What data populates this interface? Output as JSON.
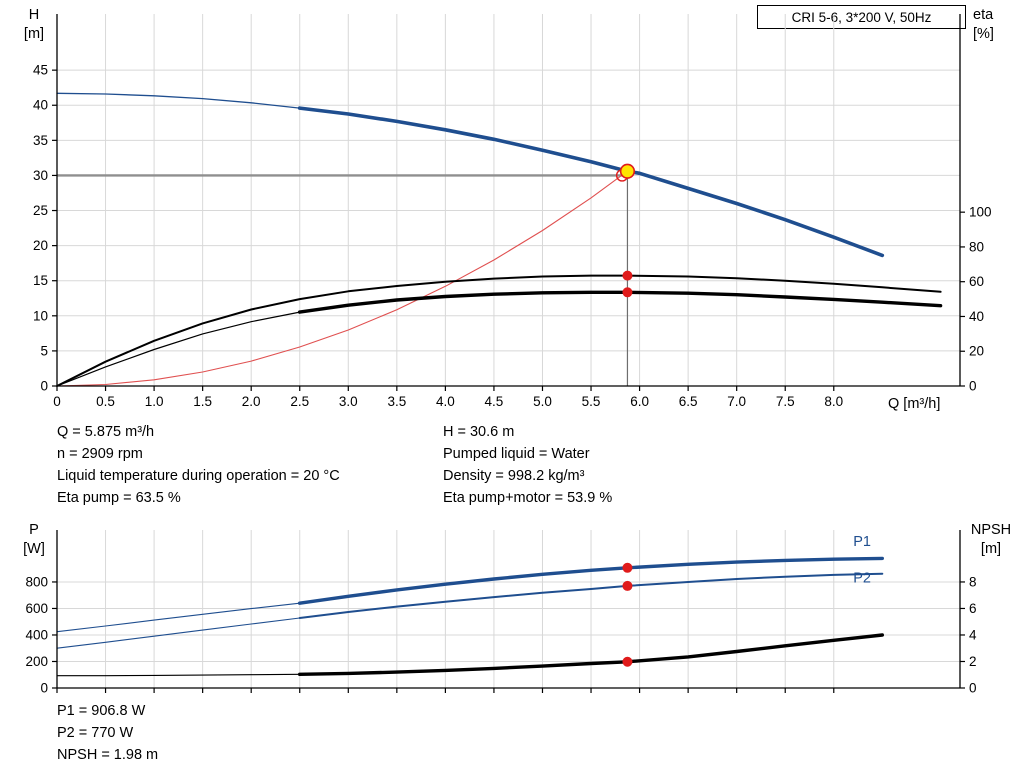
{
  "header": {
    "pump_model": "CRI 5-6, 3*200 V, 50Hz"
  },
  "labels": {
    "h_axis_symbol": "H",
    "h_axis_unit": "[m]",
    "eta_axis_symbol": "eta",
    "eta_axis_unit": "[%]",
    "q_axis": "Q [m³/h]",
    "p_axis_symbol": "P",
    "p_axis_unit": "[W]",
    "npsh_axis_symbol": "NPSH",
    "npsh_axis_unit": "[m]"
  },
  "info_top": {
    "left": [
      "Q = 5.875 m³/h",
      "n = 2909 rpm",
      "Liquid temperature during operation = 20 °C",
      "Eta pump = 63.5 %"
    ],
    "right": [
      "H = 30.6 m",
      "Pumped liquid = Water",
      "Density = 998.2 kg/m³",
      "Eta pump+motor = 53.9 %"
    ]
  },
  "info_bottom": [
    "P1 = 906.8 W",
    "P2 = 770 W",
    "NPSH = 1.98 m"
  ],
  "colors": {
    "curve_blue": "#1f4e8f",
    "curve_black": "#000000",
    "curve_red": "#e05050",
    "marker_red": "#e01b1b",
    "marker_yellow": "#ffe400",
    "crosshair_gray": "#8f8f8f",
    "grid_gray": "#d8d8d8"
  },
  "chart_data": [
    {
      "type": "line",
      "name": "qh-eta-chart",
      "grid": true,
      "x_axis": {
        "label": "Q [m³/h]",
        "range": [
          0,
          9.3
        ],
        "ticks": [
          [
            0,
            "0"
          ],
          [
            0.5,
            "0.5"
          ],
          [
            1,
            "1.0"
          ],
          [
            1.5,
            "1.5"
          ],
          [
            2,
            "2.0"
          ],
          [
            2.5,
            "2.5"
          ],
          [
            3,
            "3.0"
          ],
          [
            3.5,
            "3.5"
          ],
          [
            4,
            "4.0"
          ],
          [
            4.5,
            "4.5"
          ],
          [
            5,
            "5.0"
          ],
          [
            5.5,
            "5.5"
          ],
          [
            6,
            "6.0"
          ],
          [
            6.5,
            "6.5"
          ],
          [
            7,
            "7.0"
          ],
          [
            7.5,
            "7.5"
          ],
          [
            8,
            "8.0"
          ]
        ]
      },
      "y_left": {
        "label": "H [m]",
        "range": [
          0,
          53
        ],
        "ticks": [
          [
            0,
            "0"
          ],
          [
            5,
            "5"
          ],
          [
            10,
            "10"
          ],
          [
            15,
            "15"
          ],
          [
            20,
            "20"
          ],
          [
            25,
            "25"
          ],
          [
            30,
            "30"
          ],
          [
            35,
            "35"
          ],
          [
            40,
            "40"
          ],
          [
            45,
            "45"
          ]
        ]
      },
      "y_right": {
        "label": "eta [%]",
        "range": [
          0,
          214
        ],
        "ticks": [
          [
            0,
            "0"
          ],
          [
            20,
            "20"
          ],
          [
            40,
            "40"
          ],
          [
            60,
            "60"
          ],
          [
            80,
            "80"
          ],
          [
            100,
            "100"
          ]
        ]
      },
      "reference_lines": [
        {
          "name": "head-reference-line",
          "axis": "left",
          "from": [
            0,
            30
          ],
          "to": [
            5.875,
            30
          ],
          "color": "#8f8f8f",
          "width": 2.4
        },
        {
          "name": "flow-reference-line",
          "axis": "left",
          "from": [
            5.875,
            0
          ],
          "to": [
            5.875,
            30.6
          ],
          "color": "#6e6e6e",
          "width": 1.2
        }
      ],
      "series": [
        {
          "name": "qh-curve-extension",
          "axis": "left",
          "color": "#1f4e8f",
          "width": 1.3,
          "points": [
            [
              0,
              41.7
            ],
            [
              0.5,
              41.6
            ],
            [
              1,
              41.35
            ],
            [
              1.5,
              40.95
            ],
            [
              2,
              40.35
            ],
            [
              2.5,
              39.6
            ]
          ]
        },
        {
          "name": "qh-curve",
          "axis": "left",
          "color": "#1f4e8f",
          "width": 3.6,
          "points": [
            [
              2.5,
              39.6
            ],
            [
              3,
              38.75
            ],
            [
              3.5,
              37.7
            ],
            [
              4,
              36.5
            ],
            [
              4.5,
              35.15
            ],
            [
              5,
              33.6
            ],
            [
              5.5,
              31.95
            ],
            [
              5.875,
              30.6
            ],
            [
              6,
              30.3
            ],
            [
              6.5,
              28.15
            ],
            [
              7,
              26.0
            ],
            [
              7.5,
              23.7
            ],
            [
              8,
              21.2
            ],
            [
              8.5,
              18.6
            ]
          ]
        },
        {
          "name": "system-parabola",
          "axis": "left",
          "color": "#e05050",
          "width": 1.1,
          "points": [
            [
              0,
              0
            ],
            [
              0.5,
              0.22
            ],
            [
              1,
              0.89
            ],
            [
              1.5,
              2.0
            ],
            [
              2,
              3.55
            ],
            [
              2.5,
              5.55
            ],
            [
              3,
              7.98
            ],
            [
              3.5,
              10.85
            ],
            [
              4,
              14.2
            ],
            [
              4.5,
              17.95
            ],
            [
              5,
              22.15
            ],
            [
              5.5,
              26.8
            ],
            [
              5.875,
              30.6
            ]
          ]
        },
        {
          "name": "eta-pump-curve",
          "axis": "right",
          "color": "#000000",
          "width": 2,
          "points": [
            [
              0,
              0
            ],
            [
              0.5,
              14
            ],
            [
              1,
              26
            ],
            [
              1.5,
              36
            ],
            [
              2,
              44
            ],
            [
              2.5,
              50
            ],
            [
              3,
              54.5
            ],
            [
              3.5,
              57.5
            ],
            [
              4,
              60
            ],
            [
              4.5,
              61.8
            ],
            [
              5,
              63
            ],
            [
              5.5,
              63.5
            ],
            [
              5.875,
              63.5
            ],
            [
              6.5,
              63
            ],
            [
              7,
              62
            ],
            [
              7.5,
              60.5
            ],
            [
              8,
              58.8
            ],
            [
              8.5,
              56.8
            ],
            [
              9.1,
              54.2
            ]
          ]
        },
        {
          "name": "eta-pump-motor-extension",
          "axis": "right",
          "color": "#000000",
          "width": 1.2,
          "points": [
            [
              0,
              0
            ],
            [
              0.5,
              11
            ],
            [
              1,
              21
            ],
            [
              1.5,
              30
            ],
            [
              2,
              37
            ],
            [
              2.5,
              42.5
            ]
          ]
        },
        {
          "name": "eta-pump-motor-curve",
          "axis": "right",
          "color": "#000000",
          "width": 3.4,
          "points": [
            [
              2.5,
              42.5
            ],
            [
              3,
              46.5
            ],
            [
              3.5,
              49.5
            ],
            [
              4,
              51.5
            ],
            [
              4.5,
              52.8
            ],
            [
              5,
              53.6
            ],
            [
              5.5,
              53.9
            ],
            [
              5.875,
              53.9
            ],
            [
              6.5,
              53.4
            ],
            [
              7,
              52.5
            ],
            [
              7.5,
              51.2
            ],
            [
              8,
              49.8
            ],
            [
              8.5,
              48.2
            ],
            [
              9.1,
              46.2
            ]
          ]
        }
      ],
      "markers": [
        {
          "name": "requested-duty-point",
          "axis": "left",
          "x": 5.82,
          "y": 30.0,
          "r": 5.5,
          "stroke": "#e01b1b",
          "stroke_width": 1.4
        },
        {
          "name": "actual-duty-point",
          "axis": "left",
          "x": 5.875,
          "y": 30.6,
          "r": 6.8,
          "fill": "#ffe400",
          "stroke": "#e01b1b",
          "stroke_width": 1.6
        },
        {
          "name": "eta-pump-duty-dot",
          "axis": "right",
          "x": 5.875,
          "y": 63.5,
          "r": 5,
          "fill": "#e01b1b"
        },
        {
          "name": "eta-pump-motor-duty-dot",
          "axis": "right",
          "x": 5.875,
          "y": 53.9,
          "r": 5,
          "fill": "#e01b1b"
        }
      ],
      "annotations": []
    },
    {
      "type": "line",
      "name": "power-npsh-chart",
      "grid": true,
      "x_axis": {
        "label": "",
        "range": [
          0,
          9.3
        ],
        "ticks": [
          0,
          0.5,
          1,
          1.5,
          2,
          2.5,
          3,
          3.5,
          4,
          4.5,
          5,
          5.5,
          6,
          6.5,
          7,
          7.5,
          8
        ]
      },
      "y_left": {
        "label": "P [W]",
        "range": [
          0,
          1192
        ],
        "ticks": [
          [
            0,
            "0"
          ],
          [
            200,
            "200"
          ],
          [
            400,
            "400"
          ],
          [
            600,
            "600"
          ],
          [
            800,
            "800"
          ]
        ]
      },
      "y_right": {
        "label": "NPSH [m]",
        "range": [
          0,
          11.92
        ],
        "ticks": [
          [
            0,
            "0"
          ],
          [
            2,
            "2"
          ],
          [
            4,
            "4"
          ],
          [
            6,
            "6"
          ],
          [
            8,
            "8"
          ]
        ]
      },
      "reference_lines": [],
      "series": [
        {
          "name": "p1-curve-extension",
          "axis": "left",
          "color": "#1f4e8f",
          "width": 1.1,
          "points": [
            [
              0,
              425
            ],
            [
              0.5,
              468
            ],
            [
              1,
              512
            ],
            [
              1.5,
              556
            ],
            [
              2,
              599
            ],
            [
              2.5,
              640
            ]
          ]
        },
        {
          "name": "p1-curve",
          "axis": "left",
          "color": "#1f4e8f",
          "width": 3.4,
          "points": [
            [
              2.5,
              640
            ],
            [
              3,
              692
            ],
            [
              3.5,
              740
            ],
            [
              4,
              783
            ],
            [
              4.5,
              822
            ],
            [
              5,
              858
            ],
            [
              5.5,
              888
            ],
            [
              5.875,
              907
            ],
            [
              6.5,
              933
            ],
            [
              7,
              950
            ],
            [
              7.5,
              963
            ],
            [
              8,
              972
            ],
            [
              8.5,
              978
            ]
          ]
        },
        {
          "name": "p2-curve-extension",
          "axis": "left",
          "color": "#1f4e8f",
          "width": 1.1,
          "points": [
            [
              0,
              300
            ],
            [
              0.5,
              345
            ],
            [
              1,
              391
            ],
            [
              1.5,
              437
            ],
            [
              2,
              483
            ],
            [
              2.5,
              528
            ]
          ]
        },
        {
          "name": "p2-curve",
          "axis": "left",
          "color": "#1f4e8f",
          "width": 2,
          "points": [
            [
              2.5,
              528
            ],
            [
              3,
              573
            ],
            [
              3.5,
              614
            ],
            [
              4,
              651
            ],
            [
              4.5,
              686
            ],
            [
              5,
              718
            ],
            [
              5.5,
              747
            ],
            [
              5.875,
              770
            ],
            [
              6.5,
              800
            ],
            [
              7,
              822
            ],
            [
              7.5,
              840
            ],
            [
              8,
              853
            ],
            [
              8.5,
              862
            ]
          ]
        },
        {
          "name": "npsh-curve-extension",
          "axis": "right",
          "color": "#000000",
          "width": 1.1,
          "points": [
            [
              0,
              0.93
            ],
            [
              0.5,
              0.93
            ],
            [
              1,
              0.95
            ],
            [
              1.5,
              0.97
            ],
            [
              2,
              1.0
            ],
            [
              2.5,
              1.03
            ]
          ]
        },
        {
          "name": "npsh-curve",
          "axis": "right",
          "color": "#000000",
          "width": 3.4,
          "points": [
            [
              2.5,
              1.03
            ],
            [
              3,
              1.1
            ],
            [
              3.5,
              1.2
            ],
            [
              4,
              1.33
            ],
            [
              4.5,
              1.48
            ],
            [
              5,
              1.65
            ],
            [
              5.5,
              1.85
            ],
            [
              5.875,
              1.98
            ],
            [
              6.5,
              2.35
            ],
            [
              7,
              2.75
            ],
            [
              7.5,
              3.18
            ],
            [
              8,
              3.6
            ],
            [
              8.5,
              4.0
            ]
          ]
        }
      ],
      "markers": [
        {
          "name": "p1-duty-dot",
          "axis": "left",
          "x": 5.875,
          "y": 906.8,
          "r": 5,
          "fill": "#e01b1b"
        },
        {
          "name": "p2-duty-dot",
          "axis": "left",
          "x": 5.875,
          "y": 770,
          "r": 5,
          "fill": "#e01b1b"
        },
        {
          "name": "npsh-duty-dot",
          "axis": "right",
          "x": 5.875,
          "y": 1.98,
          "r": 5,
          "fill": "#e01b1b"
        }
      ],
      "annotations": [
        {
          "name": "p1-curve-label",
          "text": "P1",
          "axis": "left",
          "x": 8.2,
          "y": 1071,
          "color": "#1f4e8f",
          "size": 14.5
        },
        {
          "name": "p2-curve-label",
          "text": "P2",
          "axis": "left",
          "x": 8.2,
          "y": 795,
          "color": "#1f4e8f",
          "size": 14.5
        }
      ]
    }
  ]
}
